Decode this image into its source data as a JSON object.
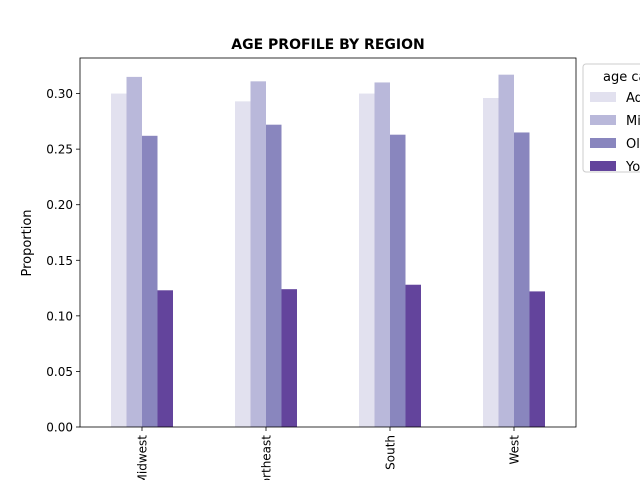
{
  "chart_data": {
    "type": "bar",
    "title": "AGE PROFILE BY REGION",
    "xlabel": "",
    "ylabel": "Proportion",
    "ylim": [
      0,
      0.332
    ],
    "yticks": [
      "0.00",
      "0.05",
      "0.10",
      "0.15",
      "0.20",
      "0.25",
      "0.30"
    ],
    "categories": [
      "Midwest",
      "Northeast",
      "South",
      "West"
    ],
    "series": [
      {
        "name": "Adult",
        "color": "#e2e1ef",
        "values": [
          0.3,
          0.293,
          0.3,
          0.296
        ]
      },
      {
        "name": "Middle-aged",
        "color": "#b9b8da",
        "values": [
          0.315,
          0.311,
          0.31,
          0.317
        ]
      },
      {
        "name": "Older",
        "color": "#8986be",
        "values": [
          0.262,
          0.272,
          0.263,
          0.265
        ]
      },
      {
        "name": "Young",
        "color": "#63449c",
        "values": [
          0.123,
          0.124,
          0.128,
          0.122
        ]
      }
    ],
    "legend": {
      "title": "age category",
      "placement": "outside-right"
    },
    "grid": false
  }
}
